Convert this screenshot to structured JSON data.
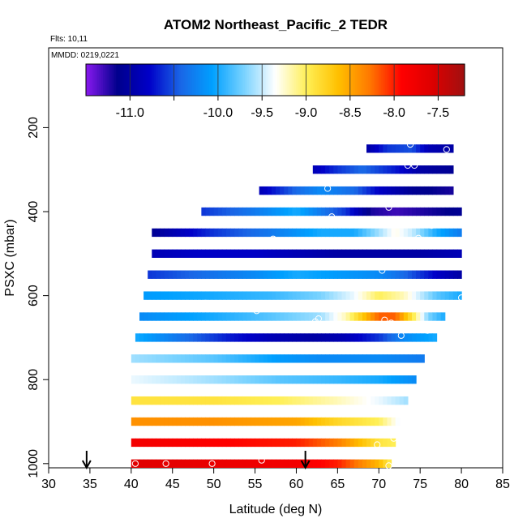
{
  "chart_data": {
    "type": "heatmap",
    "title": "ATOM2 Northeast_Pacific_2 TEDR",
    "flights_label": "Flts: 10,11",
    "dates_label": "MMDD: 0219,0221",
    "xlabel": "Latitude (deg N)",
    "ylabel": "PSXC (mbar)",
    "xlim": [
      30,
      85
    ],
    "ylim": [
      1010,
      10
    ],
    "x_ticks": [
      30,
      35,
      40,
      45,
      50,
      55,
      60,
      65,
      70,
      75,
      80,
      85
    ],
    "y_ticks": [
      200,
      400,
      600,
      800,
      1000
    ],
    "colorbar": {
      "min": -11.5,
      "max": -7.2,
      "ticks": [
        -11.0,
        -10.0,
        -9.5,
        -9.0,
        -8.5,
        -8.0,
        -7.5
      ],
      "tick_labels": [
        "-11.0",
        "-10.0",
        "-9.5",
        "-9.0",
        "-8.5",
        "-8.0",
        "-7.5"
      ],
      "colors": [
        "#8a19f0",
        "#00008c",
        "#0000c8",
        "#1a66e6",
        "#00a0ff",
        "#78d2ff",
        "#ffffff",
        "#ffef55",
        "#ffc000",
        "#ff7800",
        "#ff0000",
        "#dc0000",
        "#a01010"
      ]
    },
    "layers": [
      {
        "p": 1000,
        "lat_min": 40.0,
        "lat_max": 71.5,
        "profile": [
          [
            40,
            -7.6
          ],
          [
            50,
            -7.7
          ],
          [
            60,
            -7.8
          ],
          [
            65,
            -8.0
          ],
          [
            70,
            -8.6
          ],
          [
            71.5,
            -9.0
          ]
        ]
      },
      {
        "p": 950,
        "lat_min": 40.0,
        "lat_max": 72.0,
        "profile": [
          [
            40,
            -7.8
          ],
          [
            50,
            -7.9
          ],
          [
            60,
            -8.0
          ],
          [
            65,
            -8.3
          ],
          [
            70,
            -8.9
          ],
          [
            72,
            -9.0
          ]
        ]
      },
      {
        "p": 900,
        "lat_min": 40.0,
        "lat_max": 72.5,
        "profile": [
          [
            40,
            -8.4
          ],
          [
            50,
            -8.4
          ],
          [
            60,
            -8.5
          ],
          [
            65,
            -8.8
          ],
          [
            70,
            -9.0
          ],
          [
            72.5,
            -9.4
          ]
        ]
      },
      {
        "p": 850,
        "lat_min": 40.0,
        "lat_max": 73.5,
        "profile": [
          [
            40,
            -8.9
          ],
          [
            50,
            -8.9
          ],
          [
            58,
            -9.0
          ],
          [
            65,
            -9.2
          ],
          [
            70,
            -9.4
          ],
          [
            73.5,
            -9.6
          ]
        ]
      },
      {
        "p": 800,
        "lat_min": 40.0,
        "lat_max": 74.5,
        "profile": [
          [
            40,
            -9.4
          ],
          [
            50,
            -9.6
          ],
          [
            58,
            -9.8
          ],
          [
            65,
            -9.9
          ],
          [
            70,
            -10.0
          ],
          [
            74.5,
            -10.2
          ]
        ]
      },
      {
        "p": 750,
        "lat_min": 40.0,
        "lat_max": 75.5,
        "profile": [
          [
            40,
            -9.6
          ],
          [
            50,
            -9.8
          ],
          [
            58,
            -10.1
          ],
          [
            63,
            -10.2
          ],
          [
            70,
            -10.2
          ],
          [
            75.5,
            -10.3
          ]
        ]
      },
      {
        "p": 700,
        "lat_min": 40.5,
        "lat_max": 77.0,
        "profile": [
          [
            40.5,
            -10.0
          ],
          [
            47,
            -10.4
          ],
          [
            52,
            -10.7
          ],
          [
            57,
            -10.9
          ],
          [
            62,
            -11.0
          ],
          [
            66,
            -10.9
          ],
          [
            70,
            -10.6
          ],
          [
            73,
            -10.2
          ],
          [
            77,
            -10.0
          ]
        ]
      },
      {
        "p": 650,
        "lat_min": 41.0,
        "lat_max": 78.0,
        "profile": [
          [
            41,
            -10.2
          ],
          [
            50,
            -10.0
          ],
          [
            57,
            -9.8
          ],
          [
            63,
            -9.6
          ],
          [
            66,
            -9.2
          ],
          [
            68,
            -8.7
          ],
          [
            70,
            -8.2
          ],
          [
            72,
            -8.2
          ],
          [
            74,
            -8.9
          ],
          [
            76,
            -9.7
          ],
          [
            78,
            -10.0
          ]
        ]
      },
      {
        "p": 600,
        "lat_min": 41.5,
        "lat_max": 80.0,
        "profile": [
          [
            41.5,
            -10.1
          ],
          [
            50,
            -10.0
          ],
          [
            57,
            -9.9
          ],
          [
            63,
            -9.7
          ],
          [
            67,
            -9.4
          ],
          [
            70,
            -9.0
          ],
          [
            73,
            -9.2
          ],
          [
            77,
            -9.8
          ],
          [
            80,
            -10.0
          ]
        ]
      },
      {
        "p": 550,
        "lat_min": 42.0,
        "lat_max": 80.0,
        "profile": [
          [
            42,
            -10.6
          ],
          [
            48,
            -10.4
          ],
          [
            55,
            -10.2
          ],
          [
            60,
            -10.0
          ],
          [
            65,
            -10.1
          ],
          [
            70,
            -10.2
          ],
          [
            73,
            -10.4
          ],
          [
            77,
            -10.8
          ],
          [
            80,
            -11.0
          ]
        ]
      },
      {
        "p": 500,
        "lat_min": 42.5,
        "lat_max": 80.0,
        "profile": [
          [
            42.5,
            -10.9
          ],
          [
            48,
            -10.8
          ],
          [
            55,
            -10.8
          ],
          [
            60,
            -10.9
          ],
          [
            65,
            -11.0
          ],
          [
            70,
            -11.0
          ],
          [
            75,
            -11.0
          ],
          [
            80,
            -10.9
          ]
        ]
      },
      {
        "p": 450,
        "lat_min": 42.5,
        "lat_max": 80.0,
        "profile": [
          [
            42.5,
            -11.1
          ],
          [
            50,
            -10.6
          ],
          [
            57,
            -10.3
          ],
          [
            63,
            -10.0
          ],
          [
            67,
            -10.0
          ],
          [
            70,
            -9.6
          ],
          [
            72,
            -9.3
          ],
          [
            74,
            -9.5
          ],
          [
            77,
            -10.0
          ],
          [
            80,
            -10.3
          ]
        ]
      },
      {
        "p": 400,
        "lat_min": 48.5,
        "lat_max": 80.0,
        "profile": [
          [
            48.5,
            -10.6
          ],
          [
            55,
            -10.3
          ],
          [
            60,
            -10.0
          ],
          [
            66,
            -10.6
          ],
          [
            69,
            -11.2
          ],
          [
            72,
            -11.3
          ],
          [
            76,
            -11.2
          ],
          [
            80,
            -11.1
          ]
        ]
      },
      {
        "p": 350,
        "lat_min": 55.5,
        "lat_max": 79.0,
        "profile": [
          [
            55.5,
            -10.9
          ],
          [
            60,
            -10.4
          ],
          [
            63,
            -10.2
          ],
          [
            67,
            -10.4
          ],
          [
            70,
            -10.8
          ],
          [
            74,
            -11.1
          ],
          [
            79,
            -11.2
          ]
        ]
      },
      {
        "p": 300,
        "lat_min": 62.0,
        "lat_max": 79.0,
        "profile": [
          [
            62,
            -10.9
          ],
          [
            65,
            -10.6
          ],
          [
            68,
            -10.4
          ],
          [
            72,
            -10.7
          ],
          [
            75,
            -11.0
          ],
          [
            79,
            -11.1
          ]
        ]
      },
      {
        "p": 250,
        "lat_min": 68.5,
        "lat_max": 79.0,
        "profile": [
          [
            68.5,
            -11.0
          ],
          [
            71,
            -10.6
          ],
          [
            74,
            -10.5
          ],
          [
            76,
            -10.9
          ],
          [
            79,
            -11.0
          ]
        ]
      }
    ],
    "circles": [
      [
        40.2,
        720
      ],
      [
        40.5,
        1000
      ],
      [
        44.2,
        1000
      ],
      [
        49.8,
        1000
      ],
      [
        55.8,
        992
      ],
      [
        42.8,
        420
      ],
      [
        45.2,
        480
      ],
      [
        50.8,
        472
      ],
      [
        57.2,
        465
      ],
      [
        49.0,
        618
      ],
      [
        55.2,
        636
      ],
      [
        62.3,
        662
      ],
      [
        62.7,
        655
      ],
      [
        63.8,
        345
      ],
      [
        64.3,
        412
      ],
      [
        66.5,
        432
      ],
      [
        69.0,
        215
      ],
      [
        69.8,
        425
      ],
      [
        70.4,
        540
      ],
      [
        70.7,
        658
      ],
      [
        70.8,
        672
      ],
      [
        71.0,
        378
      ],
      [
        71.2,
        390
      ],
      [
        71.5,
        665
      ],
      [
        72.7,
        695
      ],
      [
        73.5,
        290
      ],
      [
        73.8,
        240
      ],
      [
        74.3,
        290
      ],
      [
        74.8,
        463
      ],
      [
        75.9,
        683
      ],
      [
        76.4,
        433
      ],
      [
        78.2,
        252
      ],
      [
        79.7,
        375
      ],
      [
        80.0,
        605
      ],
      [
        71.8,
        940
      ],
      [
        69.8,
        955
      ],
      [
        71.2,
        1005
      ]
    ],
    "arrows": [
      34.6,
      61.1
    ]
  }
}
